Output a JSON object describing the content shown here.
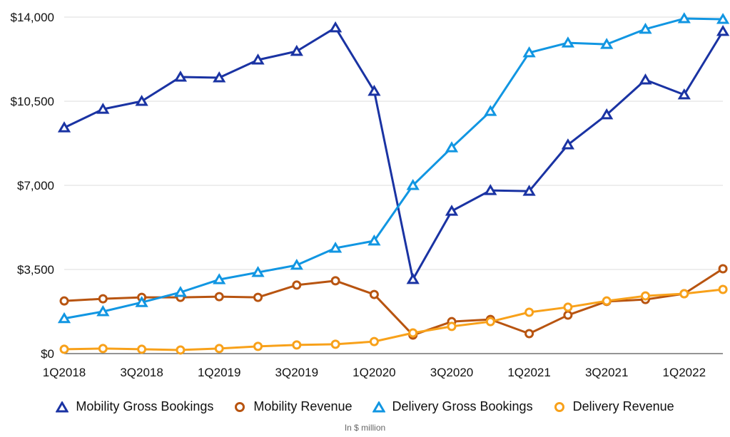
{
  "chart_data": {
    "type": "line",
    "title": "",
    "xlabel": "",
    "ylabel": "",
    "note": "In $ million",
    "ylim": [
      0,
      14000
    ],
    "yticks": [
      0,
      3500,
      7000,
      10500,
      14000
    ],
    "ytick_labels": [
      "$0",
      "$3,500",
      "$7,000",
      "$10,500",
      "$14,000"
    ],
    "grid": true,
    "legend_position": "bottom",
    "categories": [
      "1Q2018",
      "2Q2018",
      "3Q2018",
      "4Q2018",
      "1Q2019",
      "2Q2019",
      "3Q2019",
      "4Q2019",
      "1Q2020",
      "2Q2020",
      "3Q2020",
      "4Q2020",
      "1Q2021",
      "2Q2021",
      "3Q2021",
      "4Q2021",
      "1Q2022",
      "2Q2022"
    ],
    "xtick_labels": [
      "1Q2018",
      "3Q2018",
      "1Q2019",
      "3Q2019",
      "1Q2020",
      "3Q2020",
      "1Q2021",
      "3Q2021",
      "1Q2022"
    ],
    "series": [
      {
        "name": "Mobility Gross Bookings",
        "color": "#1a33a3",
        "marker": "triangle",
        "values": [
          9400,
          10170,
          10500,
          11510,
          11480,
          12220,
          12580,
          13560,
          10920,
          3090,
          5930,
          6790,
          6760,
          8690,
          9940,
          11390,
          10770,
          13410
        ]
      },
      {
        "name": "Mobility Revenue",
        "color": "#b85410",
        "marker": "circle",
        "values": [
          2190,
          2280,
          2340,
          2340,
          2370,
          2340,
          2850,
          3030,
          2460,
          770,
          1330,
          1420,
          830,
          1600,
          2170,
          2250,
          2490,
          3530
        ]
      },
      {
        "name": "Delivery Gross Bookings",
        "color": "#1196e2",
        "marker": "triangle",
        "values": [
          1460,
          1750,
          2130,
          2550,
          3080,
          3380,
          3680,
          4390,
          4690,
          7000,
          8570,
          10080,
          12520,
          12930,
          12870,
          13500,
          13940,
          13910
        ]
      },
      {
        "name": "Delivery Revenue",
        "color": "#f8a11a",
        "marker": "circle",
        "values": [
          180,
          210,
          180,
          150,
          210,
          300,
          360,
          390,
          500,
          860,
          1130,
          1330,
          1720,
          1930,
          2190,
          2400,
          2490,
          2670
        ]
      }
    ]
  },
  "legend": {
    "items": [
      {
        "label": "Mobility Gross Bookings",
        "color": "#1a33a3",
        "marker": "triangle"
      },
      {
        "label": "Mobility Revenue",
        "color": "#b85410",
        "marker": "circle"
      },
      {
        "label": "Delivery Gross Bookings",
        "color": "#1196e2",
        "marker": "triangle"
      },
      {
        "label": "Delivery Revenue",
        "color": "#f8a11a",
        "marker": "circle"
      }
    ]
  },
  "footnote": "In $ million"
}
